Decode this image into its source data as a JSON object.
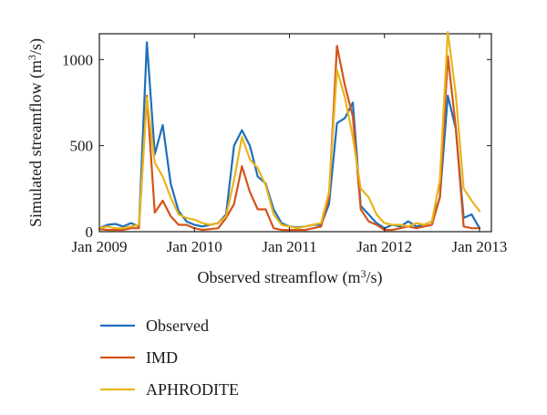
{
  "chart_data": {
    "type": "line",
    "xlabel": {
      "prefix": "Observed streamflow (m",
      "sup": "3",
      "suffix": "/s)"
    },
    "ylabel": {
      "prefix": "Simulated streamflow (m",
      "sup": "3",
      "suffix": "/s)"
    },
    "x_ticks": [
      {
        "value": 0,
        "label": "Jan 2009"
      },
      {
        "value": 12,
        "label": "Jan 2010"
      },
      {
        "value": 24,
        "label": "Jan 2011"
      },
      {
        "value": 36,
        "label": "Jan 2012"
      },
      {
        "value": 48,
        "label": "Jan 2013"
      }
    ],
    "y_ticks": [
      0,
      500,
      1000
    ],
    "xlim": [
      0,
      49.5
    ],
    "ylim": [
      0,
      1150
    ],
    "grid": false,
    "legend_placement": "below",
    "series": [
      {
        "name": "Observed",
        "color": "#1f6fba",
        "values": [
          20,
          40,
          45,
          30,
          50,
          30,
          1100,
          450,
          620,
          280,
          120,
          60,
          40,
          30,
          40,
          50,
          100,
          500,
          590,
          500,
          320,
          280,
          130,
          50,
          30,
          25,
          30,
          40,
          40,
          160,
          630,
          660,
          750,
          150,
          100,
          50,
          20,
          40,
          30,
          60,
          30,
          40,
          60,
          200,
          790,
          600,
          80,
          100,
          20
        ]
      },
      {
        "name": "IMD",
        "color": "#d4541a",
        "values": [
          15,
          10,
          10,
          10,
          20,
          20,
          790,
          110,
          180,
          90,
          40,
          40,
          20,
          10,
          15,
          20,
          80,
          160,
          380,
          230,
          130,
          130,
          20,
          10,
          10,
          10,
          10,
          20,
          30,
          200,
          1080,
          850,
          670,
          130,
          60,
          40,
          10,
          10,
          20,
          30,
          20,
          30,
          40,
          200,
          1020,
          610,
          30,
          20,
          20
        ]
      },
      {
        "name": "APHRODITE",
        "color": "#e8b51c",
        "values": [
          20,
          30,
          20,
          20,
          30,
          40,
          780,
          400,
          320,
          200,
          100,
          80,
          70,
          50,
          40,
          50,
          90,
          300,
          550,
          420,
          370,
          270,
          100,
          40,
          30,
          20,
          30,
          40,
          50,
          230,
          940,
          780,
          550,
          250,
          200,
          100,
          50,
          40,
          40,
          30,
          50,
          40,
          60,
          300,
          1160,
          800,
          250,
          180,
          120
        ]
      }
    ]
  }
}
